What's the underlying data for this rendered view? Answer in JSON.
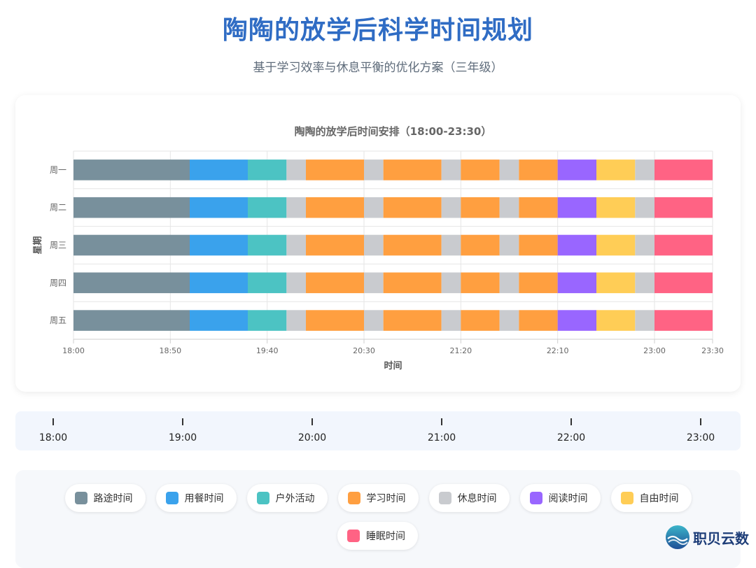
{
  "header": {
    "title": "陶陶的放学后科学时间规划",
    "subtitle": "基于学习效率与休息平衡的优化方案（三年级）"
  },
  "chart_data": {
    "type": "bar",
    "orientation": "horizontal",
    "stacked": true,
    "title": "陶陶的放学后时间安排（18:00-23:30）",
    "xlabel": "时间",
    "ylabel": "星期",
    "xlim": [
      "18:00",
      "23:30"
    ],
    "xticks": [
      "18:00",
      "18:50",
      "19:40",
      "20:30",
      "21:20",
      "22:10",
      "23:00",
      "23:30"
    ],
    "grid": true,
    "categories": [
      "周一",
      "周二",
      "周三",
      "周四",
      "周五"
    ],
    "segments": [
      {
        "activity": "路途时间",
        "start": "18:00",
        "end": "19:00"
      },
      {
        "activity": "用餐时间",
        "start": "19:00",
        "end": "19:30"
      },
      {
        "activity": "户外活动",
        "start": "19:30",
        "end": "19:50"
      },
      {
        "activity": "休息时间",
        "start": "19:50",
        "end": "20:00"
      },
      {
        "activity": "学习时间",
        "start": "20:00",
        "end": "20:30"
      },
      {
        "activity": "休息时间",
        "start": "20:30",
        "end": "20:40"
      },
      {
        "activity": "学习时间",
        "start": "20:40",
        "end": "21:10"
      },
      {
        "activity": "休息时间",
        "start": "21:10",
        "end": "21:20"
      },
      {
        "activity": "学习时间",
        "start": "21:20",
        "end": "21:40"
      },
      {
        "activity": "休息时间",
        "start": "21:40",
        "end": "21:50"
      },
      {
        "activity": "学习时间",
        "start": "21:50",
        "end": "22:10"
      },
      {
        "activity": "阅读时间",
        "start": "22:10",
        "end": "22:30"
      },
      {
        "activity": "自由时间",
        "start": "22:30",
        "end": "22:50"
      },
      {
        "activity": "休息时间",
        "start": "22:50",
        "end": "23:00"
      },
      {
        "activity": "睡眠时间",
        "start": "23:00",
        "end": "23:30"
      }
    ],
    "colors": {
      "路途时间": "#78909c",
      "用餐时间": "#3aa2ec",
      "户外活动": "#4cc3c3",
      "学习时间": "#ff9f40",
      "休息时间": "#c9cbcf",
      "阅读时间": "#9966ff",
      "自由时间": "#ffcd56",
      "睡眠时间": "#ff6384"
    }
  },
  "timeline": {
    "labels": [
      "18:00",
      "19:00",
      "20:00",
      "21:00",
      "22:00",
      "23:00"
    ]
  },
  "legend": {
    "items": [
      {
        "label": "路途时间",
        "color": "#78909c"
      },
      {
        "label": "用餐时间",
        "color": "#3aa2ec"
      },
      {
        "label": "户外活动",
        "color": "#4cc3c3"
      },
      {
        "label": "学习时间",
        "color": "#ff9f40"
      },
      {
        "label": "休息时间",
        "color": "#c9cbcf"
      },
      {
        "label": "阅读时间",
        "color": "#9966ff"
      },
      {
        "label": "自由时间",
        "color": "#ffcd56"
      },
      {
        "label": "睡眠时间",
        "color": "#ff6384"
      }
    ]
  },
  "brand": {
    "name": "职贝云数"
  }
}
